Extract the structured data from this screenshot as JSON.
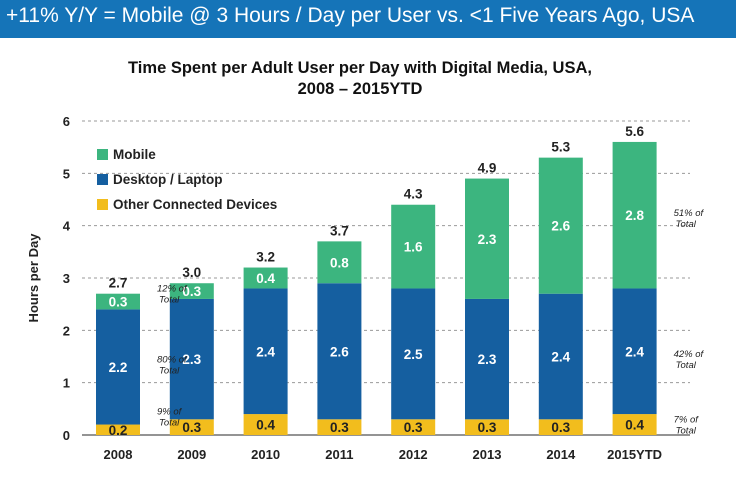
{
  "banner": {
    "text": "+11% Y/Y = Mobile @ 3 Hours / Day per User vs. <1  Five Years Ago, USA"
  },
  "chart_data": {
    "type": "bar",
    "stacked": true,
    "title_line1": "Time Spent per Adult User per Day with Digital Media, USA,",
    "title_line2": "2008 – 2015YTD",
    "ylabel": "Hours per Day",
    "ylim": [
      0,
      6
    ],
    "yticks": [
      0,
      1,
      2,
      3,
      4,
      5,
      6
    ],
    "grid": true,
    "legend_position": "top-left",
    "categories": [
      "2008",
      "2009",
      "2010",
      "2011",
      "2012",
      "2013",
      "2014",
      "2015YTD"
    ],
    "series": [
      {
        "name": "Other Connected Devices",
        "color": "#f2bd1d",
        "values": [
          0.2,
          0.3,
          0.4,
          0.3,
          0.3,
          0.3,
          0.3,
          0.4
        ],
        "labels": [
          "0.2",
          "0.3",
          "0.4",
          "0.3",
          "0.3",
          "0.3",
          "0.3",
          "0.4"
        ]
      },
      {
        "name": "Desktop / Laptop",
        "color": "#155fa0",
        "values": [
          2.2,
          2.3,
          2.4,
          2.6,
          2.5,
          2.3,
          2.4,
          2.4
        ],
        "labels": [
          "2.2",
          "2.3",
          "2.4",
          "2.6",
          "2.5",
          "2.3",
          "2.4",
          "2.4"
        ]
      },
      {
        "name": "Mobile",
        "color": "#3cb57f",
        "values": [
          0.3,
          0.3,
          0.4,
          0.8,
          1.6,
          2.3,
          2.6,
          2.8
        ],
        "labels": [
          "0.3",
          "0.3",
          "0.4",
          "0.8",
          "1.6",
          "2.3",
          "2.6",
          "2.8"
        ]
      }
    ],
    "totals": [
      "2.7",
      "3.0",
      "3.2",
      "3.7",
      "4.3",
      "4.9",
      "5.3",
      "5.6"
    ],
    "annotations": [
      {
        "line1": "12% of",
        "line2": "Total",
        "category": "2008",
        "at_value": 2.7
      },
      {
        "line1": "80% of",
        "line2": "Total",
        "category": "2008",
        "at_value": 1.35
      },
      {
        "line1": "9% of",
        "line2": "Total",
        "category": "2008",
        "at_value": 0.35
      },
      {
        "line1": "51% of",
        "line2": "Total",
        "category": "2015YTD",
        "at_value": 4.15
      },
      {
        "line1": "42% of",
        "line2": "Total",
        "category": "2015YTD",
        "at_value": 1.45
      },
      {
        "line1": "7% of",
        "line2": "Total",
        "category": "2015YTD",
        "at_value": 0.2
      }
    ]
  }
}
